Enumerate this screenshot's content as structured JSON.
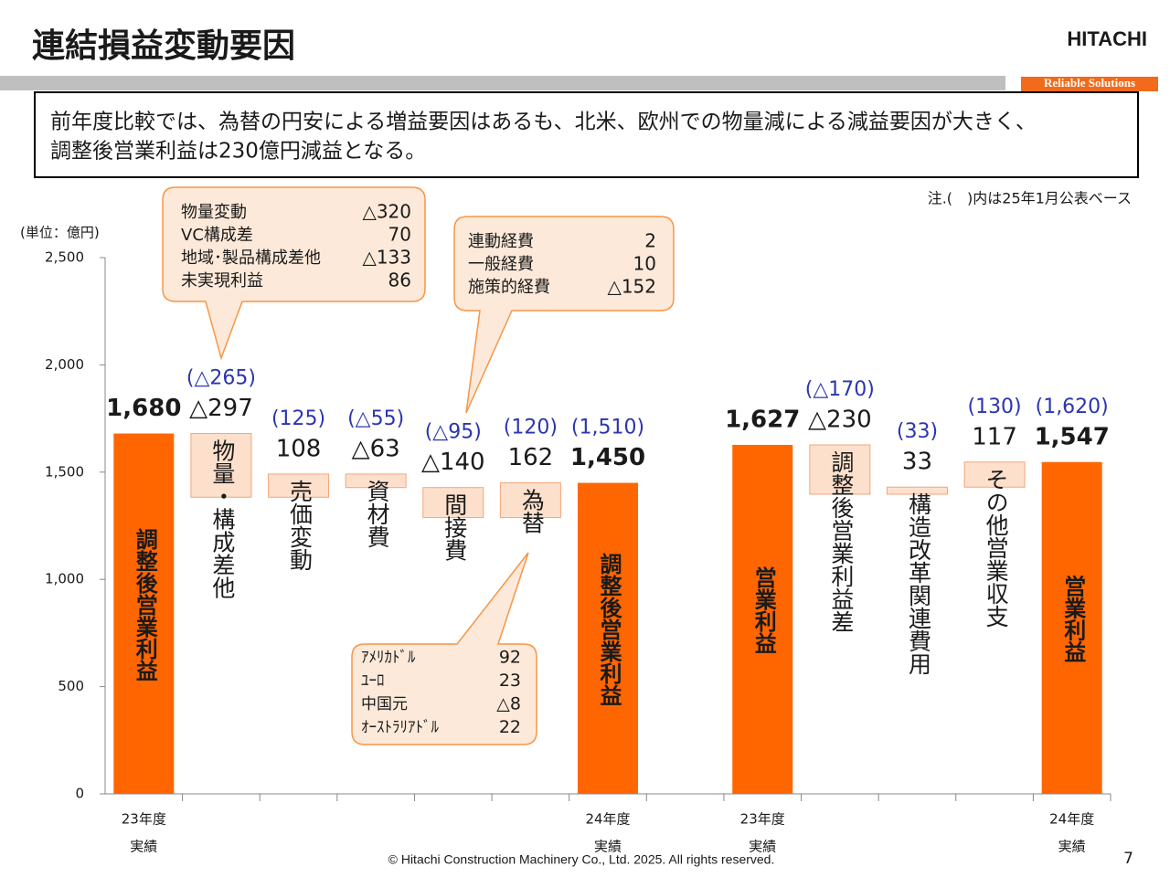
{
  "header": {
    "title": "連結損益変動要因",
    "logo": "HITACHI",
    "tagline": "Reliable Solutions"
  },
  "summary": [
    "前年度比較では、為替の円安による増益要因はあるも、北米、欧州での物量減による減益要因が大きく、",
    "調整後営業利益は230億円減益となる。"
  ],
  "note": "注.(　)内は25年1月公表ベース",
  "footer": "© Hitachi Construction Machinery Co., Ltd. 2025. All rights reserved.",
  "page_number": "7",
  "callouts": [
    {
      "items": [
        {
          "name": "物量変動",
          "value": "△320"
        },
        {
          "name": "VC構成差",
          "value": "70"
        },
        {
          "name": "地域･製品構成差他",
          "value": "△133"
        },
        {
          "name": "未実現利益",
          "value": "86"
        }
      ]
    },
    {
      "items": [
        {
          "name": "連動経費",
          "value": "2"
        },
        {
          "name": "一般経費",
          "value": "10"
        },
        {
          "name": "施策的経費",
          "value": "△152"
        }
      ]
    },
    {
      "items": [
        {
          "name": "ｱﾒﾘｶﾄﾞﾙ",
          "value": "92"
        },
        {
          "name": "ﾕｰﾛ",
          "value": "23"
        },
        {
          "name": "中国元",
          "value": "△8"
        },
        {
          "name": "ｵｰｽﾄﾗﾘｱﾄﾞﾙ",
          "value": "22"
        }
      ]
    }
  ],
  "chart_data": {
    "type": "waterfall",
    "y_label": "(単位：億円)",
    "categories": [
      [
        "23年度",
        "実績"
      ],
      null,
      null,
      null,
      null,
      null,
      [
        "24年度",
        "実績"
      ],
      null,
      [
        "23年度",
        "実績"
      ],
      null,
      null,
      null,
      [
        "24年度",
        "実績"
      ]
    ],
    "bar_labels": [
      "調整後営業利益",
      "物量・構成差他",
      "売価変動",
      "資材費",
      "間接費",
      "為替",
      "調整後営業利益",
      null,
      "営業利益",
      "調整後営業利益差",
      "構造改革関連費用",
      "その他営業収支",
      "営業利益"
    ],
    "values": [
      1680,
      -297,
      108,
      -63,
      -140,
      162,
      1450,
      null,
      1627,
      -230,
      33,
      117,
      1547
    ],
    "value_labels": [
      "1,680",
      "△297",
      "108",
      "△63",
      "△140",
      "162",
      "1,450",
      null,
      "1,627",
      "△230",
      "33",
      "117",
      "1,547"
    ],
    "forecast_labels": [
      null,
      "(△265)",
      "(125)",
      "(△55)",
      "(△95)",
      "(120)",
      "(1,510)",
      null,
      null,
      "(△170)",
      "(33)",
      "(130)",
      "(1,620)"
    ],
    "totals": [
      true,
      false,
      false,
      false,
      false,
      false,
      true,
      false,
      true,
      false,
      false,
      false,
      true
    ],
    "total_color": "#ff6600",
    "delta_color": "#fde0cc",
    "delta_border": "#f4a57a",
    "forecast_color": "#2b35b0",
    "ylim": [
      0,
      2500
    ],
    "yticks": [
      0,
      500,
      {
        "value": 1000,
        "label": "1,000"
      },
      {
        "value": 1500,
        "label": "1,500"
      },
      {
        "value": 2000,
        "label": "2,000"
      },
      {
        "value": 2500,
        "label": "2,500"
      }
    ]
  }
}
